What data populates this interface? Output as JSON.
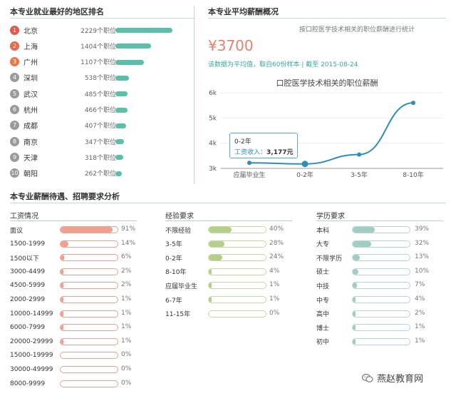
{
  "ranking": {
    "title": "本专业就业最好的地区排名",
    "items": [
      {
        "rank": "1",
        "city": "北京",
        "count": "2229个职位",
        "value": 2229,
        "color": "#e45a4a"
      },
      {
        "rank": "2",
        "city": "上海",
        "count": "1404个职位",
        "value": 1404,
        "color": "#e46a4a"
      },
      {
        "rank": "3",
        "city": "广州",
        "count": "1107个职位",
        "value": 1107,
        "color": "#e47a4a"
      },
      {
        "rank": "4",
        "city": "深圳",
        "count": "538个职位",
        "value": 538,
        "color": "#9a9a9a"
      },
      {
        "rank": "5",
        "city": "武汉",
        "count": "485个职位",
        "value": 485,
        "color": "#9a9a9a"
      },
      {
        "rank": "6",
        "city": "杭州",
        "count": "466个职位",
        "value": 466,
        "color": "#9a9a9a"
      },
      {
        "rank": "7",
        "city": "成都",
        "count": "407个职位",
        "value": 407,
        "color": "#9a9a9a"
      },
      {
        "rank": "8",
        "city": "南京",
        "count": "347个职位",
        "value": 347,
        "color": "#9a9a9a"
      },
      {
        "rank": "9",
        "city": "天津",
        "count": "318个职位",
        "value": 318,
        "color": "#9a9a9a"
      },
      {
        "rank": "10",
        "city": "朝阳",
        "count": "262个职位",
        "value": 262,
        "color": "#9a9a9a"
      }
    ]
  },
  "salary": {
    "title": "本专业平均薪酬概况",
    "note": "按口腔医学技术相关的职位薪酬进行统计",
    "amount": "¥3700",
    "subtitle": "该数据为平均值，取自60份样本 | 截至 2015-08-24",
    "chart_title": "口腔医学技术相关的职位薪酬",
    "tooltip_title": "0-2年",
    "tooltip_label": "工资收入：",
    "tooltip_value": "3,177元"
  },
  "chart_data": {
    "type": "line",
    "title": "口腔医学技术相关的职位薪酬",
    "categories": [
      "应届毕业生",
      "0-2年",
      "3-5年",
      "8-10年"
    ],
    "values": [
      3220,
      3177,
      3550,
      5600
    ],
    "ylim": [
      3000,
      6000
    ],
    "yticks": [
      "3k",
      "4k",
      "5k",
      "6k"
    ],
    "line_color": "#2d8fb5"
  },
  "analysis": {
    "title": "本专业薪酬待遇、招聘要求分析",
    "wage": {
      "heading": "工资情况",
      "color": "#f0a08c",
      "items": [
        {
          "label": "面议",
          "pct": "91%",
          "value": 91
        },
        {
          "label": "1500-1999",
          "pct": "14%",
          "value": 14
        },
        {
          "label": "1500以下",
          "pct": "6%",
          "value": 6
        },
        {
          "label": "3000-4499",
          "pct": "2%",
          "value": 2
        },
        {
          "label": "4500-5999",
          "pct": "2%",
          "value": 2
        },
        {
          "label": "2000-2999",
          "pct": "1%",
          "value": 1
        },
        {
          "label": "10000-14999",
          "pct": "1%",
          "value": 1
        },
        {
          "label": "6000-7999",
          "pct": "1%",
          "value": 1
        },
        {
          "label": "20000-29999",
          "pct": "1%",
          "value": 1
        },
        {
          "label": "15000-19999",
          "pct": "0%",
          "value": 0
        },
        {
          "label": "30000-49999",
          "pct": "0%",
          "value": 0
        },
        {
          "label": "8000-9999",
          "pct": "0%",
          "value": 0
        }
      ]
    },
    "experience": {
      "heading": "经验要求",
      "color": "#b5cf8a",
      "items": [
        {
          "label": "不限经验",
          "pct": "40%",
          "value": 40
        },
        {
          "label": "3-5年",
          "pct": "28%",
          "value": 28
        },
        {
          "label": "0-2年",
          "pct": "24%",
          "value": 24
        },
        {
          "label": "8-10年",
          "pct": "4%",
          "value": 4
        },
        {
          "label": "应届毕业生",
          "pct": "1%",
          "value": 1
        },
        {
          "label": "6-7年",
          "pct": "1%",
          "value": 1
        },
        {
          "label": "11-15年",
          "pct": "0%",
          "value": 0
        }
      ]
    },
    "education": {
      "heading": "学历要求",
      "color": "#9fccc4",
      "items": [
        {
          "label": "本科",
          "pct": "39%",
          "value": 39
        },
        {
          "label": "大专",
          "pct": "32%",
          "value": 32
        },
        {
          "label": "不限学历",
          "pct": "13%",
          "value": 13
        },
        {
          "label": "硕士",
          "pct": "10%",
          "value": 10
        },
        {
          "label": "中技",
          "pct": "7%",
          "value": 7
        },
        {
          "label": "中专",
          "pct": "4%",
          "value": 4
        },
        {
          "label": "高中",
          "pct": "2%",
          "value": 2
        },
        {
          "label": "博士",
          "pct": "1%",
          "value": 1
        },
        {
          "label": "初中",
          "pct": "1%",
          "value": 1
        }
      ]
    }
  },
  "watermark": {
    "icon": "wechat-icon",
    "text": "燕赵教育网"
  }
}
